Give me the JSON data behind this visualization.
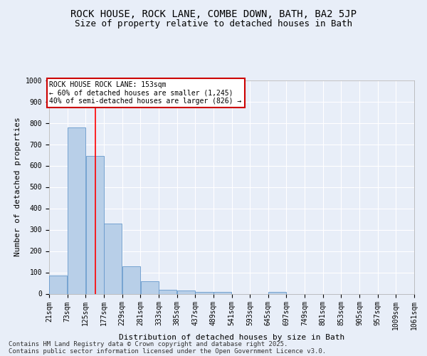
{
  "title1": "ROCK HOUSE, ROCK LANE, COMBE DOWN, BATH, BA2 5JP",
  "title2": "Size of property relative to detached houses in Bath",
  "xlabel": "Distribution of detached houses by size in Bath",
  "ylabel": "Number of detached properties",
  "bins": [
    "21sqm",
    "73sqm",
    "125sqm",
    "177sqm",
    "229sqm",
    "281sqm",
    "333sqm",
    "385sqm",
    "437sqm",
    "489sqm",
    "541sqm",
    "593sqm",
    "645sqm",
    "697sqm",
    "749sqm",
    "801sqm",
    "853sqm",
    "905sqm",
    "957sqm",
    "1009sqm",
    "1061sqm"
  ],
  "bin_edges": [
    21,
    73,
    125,
    177,
    229,
    281,
    333,
    385,
    437,
    489,
    541,
    593,
    645,
    697,
    749,
    801,
    853,
    905,
    957,
    1009,
    1061
  ],
  "bar_heights": [
    85,
    780,
    645,
    330,
    130,
    60,
    20,
    15,
    10,
    10,
    0,
    0,
    10,
    0,
    0,
    0,
    0,
    0,
    0,
    0
  ],
  "bar_color": "#b8cfe8",
  "bar_edge_color": "#6699cc",
  "red_line_x": 153,
  "ylim": [
    0,
    1000
  ],
  "yticks": [
    0,
    100,
    200,
    300,
    400,
    500,
    600,
    700,
    800,
    900,
    1000
  ],
  "annotation_title": "ROCK HOUSE ROCK LANE: 153sqm",
  "annotation_line1": "← 60% of detached houses are smaller (1,245)",
  "annotation_line2": "40% of semi-detached houses are larger (826) →",
  "annotation_box_color": "#ffffff",
  "annotation_box_edge_color": "#cc0000",
  "footer1": "Contains HM Land Registry data © Crown copyright and database right 2025.",
  "footer2": "Contains public sector information licensed under the Open Government Licence v3.0.",
  "background_color": "#e8eef8",
  "grid_color": "#ffffff",
  "title_fontsize": 10,
  "subtitle_fontsize": 9,
  "axis_label_fontsize": 8,
  "tick_fontsize": 7,
  "annotation_fontsize": 7,
  "footer_fontsize": 6.5
}
